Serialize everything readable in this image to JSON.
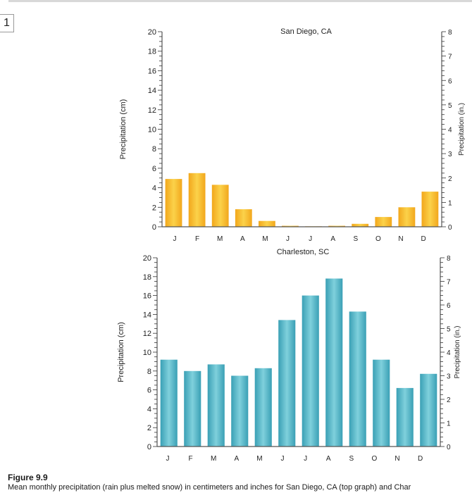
{
  "page": {
    "tab_label": "1",
    "figure_label": "Figure 9.9",
    "figure_caption": "Mean monthly precipitation (rain plus melted snow) in centimeters and inches for San Diego, CA (top graph) and Char"
  },
  "colors": {
    "san_diego_bar": "#f2a71c",
    "san_diego_bar_light": "#fbd24a",
    "charleston_bar": "#3aa0b5",
    "charleston_bar_light": "#7fd0dc",
    "axis": "#333333",
    "frame": "#555555"
  },
  "chart_data": [
    {
      "type": "bar",
      "title": "San Diego, CA",
      "categories": [
        "J",
        "F",
        "M",
        "A",
        "M",
        "J",
        "J",
        "A",
        "S",
        "O",
        "N",
        "D"
      ],
      "values": [
        4.9,
        5.5,
        4.3,
        1.8,
        0.6,
        0.1,
        0.05,
        0.1,
        0.3,
        1.0,
        2.0,
        3.6
      ],
      "ylabel": "Precipitation (cm)",
      "y2label": "Precipitation (in.)",
      "ylim": [
        0,
        20
      ],
      "y2lim": [
        0,
        8
      ],
      "yticks": [
        0,
        2,
        4,
        6,
        8,
        10,
        12,
        14,
        16,
        18,
        20
      ],
      "y2ticks": [
        0,
        1,
        2,
        3,
        4,
        5,
        6,
        7,
        8
      ],
      "grid": false
    },
    {
      "type": "bar",
      "title": "Charleston, SC",
      "categories": [
        "J",
        "F",
        "M",
        "A",
        "M",
        "J",
        "J",
        "A",
        "S",
        "O",
        "N",
        "D"
      ],
      "values": [
        9.2,
        8.0,
        8.7,
        7.5,
        8.3,
        13.4,
        16.0,
        17.8,
        14.3,
        9.2,
        6.2,
        7.7
      ],
      "ylabel": "Precipitation (cm)",
      "y2label": "Precipitation (in.)",
      "ylim": [
        0,
        20
      ],
      "y2lim": [
        0,
        8
      ],
      "yticks": [
        0,
        2,
        4,
        6,
        8,
        10,
        12,
        14,
        16,
        18,
        20
      ],
      "y2ticks": [
        0,
        1,
        2,
        3,
        4,
        5,
        6,
        7,
        8
      ],
      "grid": false
    }
  ]
}
